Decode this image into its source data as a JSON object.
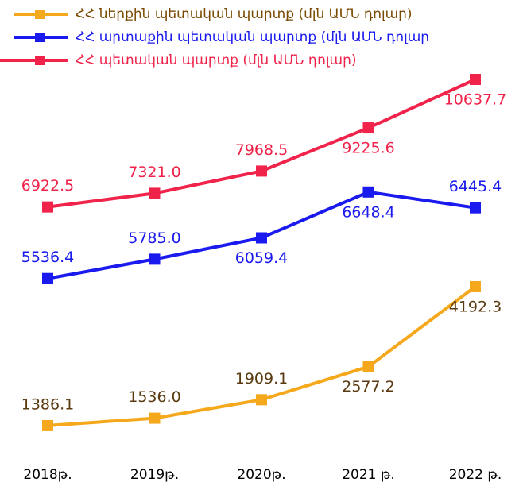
{
  "chart_data": {
    "type": "line",
    "categories": [
      "2018թ.",
      "2019թ.",
      "2020թ.",
      "2021 թ.",
      "2022 թ."
    ],
    "series": [
      {
        "name": "ՀՀ ներքին պետական պարտք (մլն ԱՄՆ դոլար)",
        "color": "#f5a81c",
        "label_color": "#5a3a10",
        "ylim": [
          1000,
          8700
        ],
        "values": [
          1386.1,
          1536.0,
          1909.1,
          2577.2,
          4192.3
        ],
        "value_labels": [
          "1386.1",
          "1536.0",
          "1909.1",
          "2577.2",
          "4192.3"
        ]
      },
      {
        "name": "ՀՀ արտաքին պետական պարտք (մլն ԱՄՆ դոլար",
        "color": "#1a1aee",
        "label_color": "#1a1aee",
        "ylim": [
          3400,
          8300
        ],
        "values": [
          5536.4,
          5785.0,
          6059.4,
          6648.4,
          6445.4
        ],
        "value_labels": [
          "5536.4",
          "5785.0",
          "6059.4",
          "6648.4",
          "6445.4"
        ]
      },
      {
        "name": "ՀՀ պետական պարտք (մլն ԱՄՆ դոլար)",
        "color": "#f0234b",
        "label_color": "#f0234b",
        "ylim": [
          0,
          11100
        ],
        "values": [
          6922.5,
          7321.0,
          7968.5,
          9225.6,
          10637.7
        ],
        "value_labels": [
          "6922.5",
          "7321.0",
          "7968.5",
          "9225.6",
          "10637.7"
        ]
      }
    ]
  }
}
